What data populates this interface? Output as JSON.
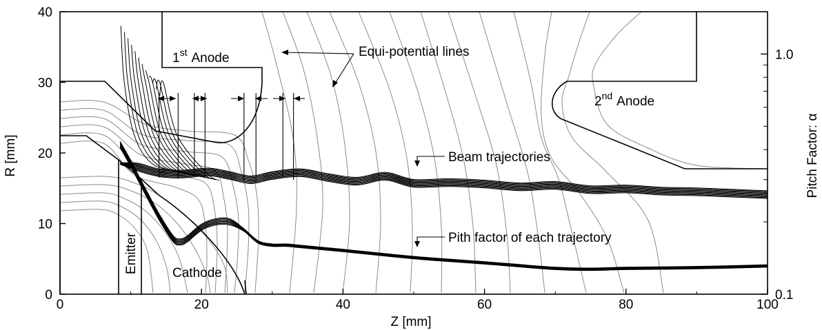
{
  "chart_data": {
    "type": "line",
    "xlabel": "Z [mm]",
    "ylabel": "R [mm]",
    "y2label": "Pitch Factor:  α",
    "xlim": [
      0,
      100
    ],
    "ylim": [
      0,
      40
    ],
    "x_ticks": [
      0,
      20,
      40,
      60,
      80,
      100
    ],
    "y_ticks": [
      0,
      10,
      20,
      30,
      40
    ],
    "y2_scale": "log",
    "y2lim": [
      0.1,
      1.5
    ],
    "y2_ticks": [
      0.1,
      1.0
    ],
    "grid": false,
    "annotations": {
      "first_anode": {
        "prefix": "1",
        "sup": "st",
        "suffix": "Anode"
      },
      "second_anode": {
        "prefix": "2",
        "sup": "nd",
        "suffix": "Anode"
      },
      "equi": "Equi-potential lines",
      "beam": "Beam trajectories",
      "pitch": "Pith factor of each trajectory",
      "emitter": "Emitter",
      "cathode": "Cathode"
    },
    "pitch_factor_curve": {
      "x": [
        8.5,
        10,
        12,
        14,
        16,
        17,
        18,
        20,
        22,
        24,
        26,
        28,
        30,
        32,
        34,
        40,
        50,
        60,
        70,
        75,
        80,
        90,
        100
      ],
      "y": [
        0.42,
        0.35,
        0.27,
        0.21,
        0.17,
        0.165,
        0.17,
        0.19,
        0.2,
        0.2,
        0.185,
        0.165,
        0.16,
        0.16,
        0.158,
        0.152,
        0.142,
        0.135,
        0.128,
        0.127,
        0.128,
        0.129,
        0.131
      ]
    },
    "beam_trajectory_center": {
      "x": [
        8.5,
        11,
        14,
        17,
        21,
        24,
        27,
        30,
        34,
        38,
        42,
        46,
        50,
        55,
        60,
        65,
        70,
        75,
        80,
        85,
        90,
        95,
        100
      ],
      "y": [
        18.5,
        18.0,
        17.2,
        17.0,
        17.3,
        16.8,
        16.2,
        16.8,
        17.2,
        16.5,
        16.0,
        16.7,
        15.7,
        15.8,
        15.6,
        15.2,
        15.4,
        14.8,
        14.9,
        14.6,
        14.5,
        14.3,
        14.1
      ]
    }
  }
}
